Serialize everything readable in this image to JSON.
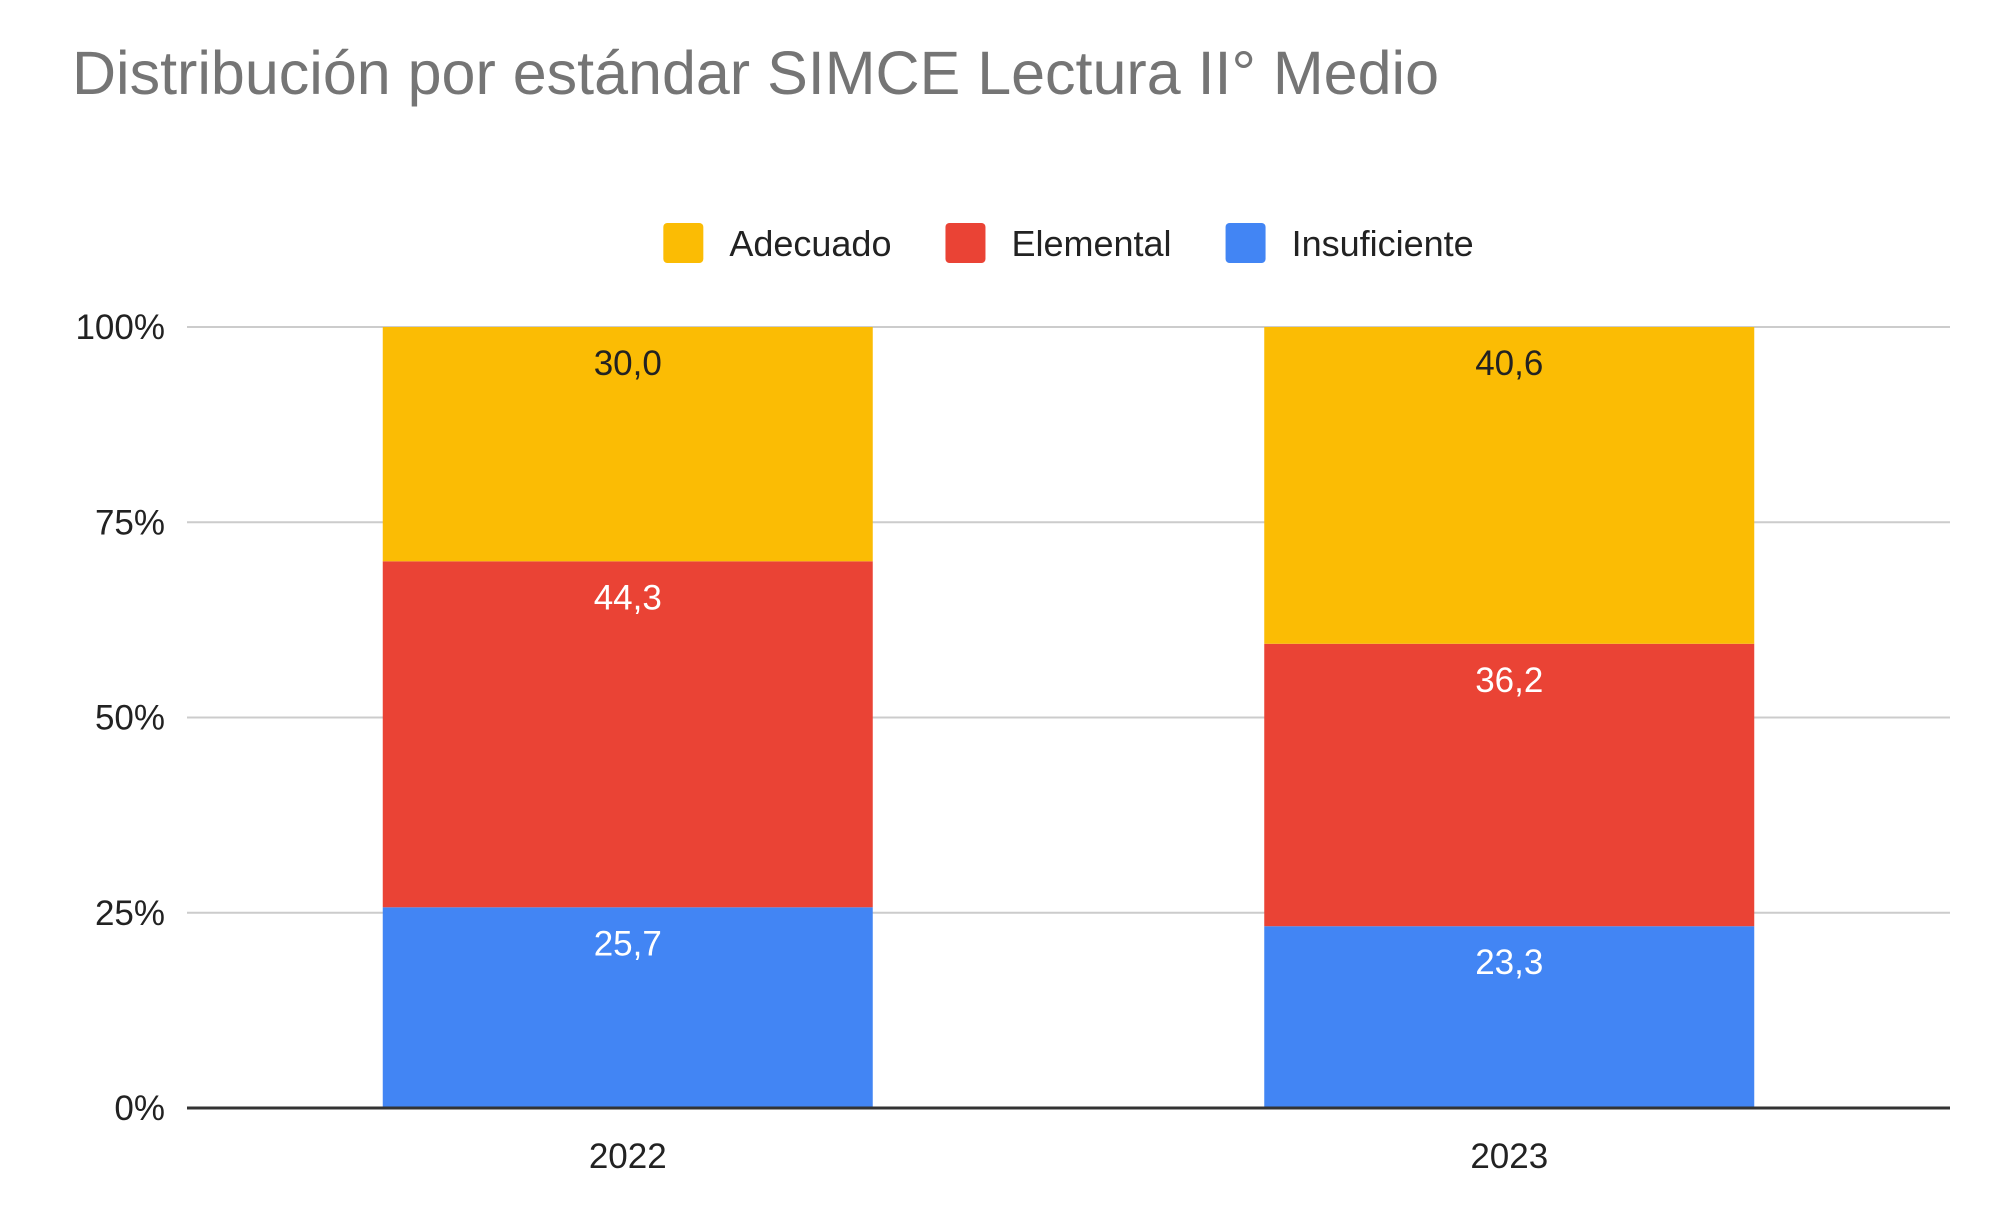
{
  "chart_data": {
    "type": "bar",
    "stacked": true,
    "percent_stacked": true,
    "title": "Distribución por estándar SIMCE Lectura II° Medio",
    "xlabel": "",
    "ylabel": "",
    "categories": [
      "2022",
      "2023"
    ],
    "series": [
      {
        "name": "Insuficiente",
        "color": "#4285f4",
        "label_color": "#ffffff",
        "values": [
          25.7,
          23.3
        ],
        "labels": [
          "25,7",
          "23,3"
        ]
      },
      {
        "name": "Elemental",
        "color": "#ea4335",
        "label_color": "#ffffff",
        "values": [
          44.3,
          36.2
        ],
        "labels": [
          "44,3",
          "36,2"
        ]
      },
      {
        "name": "Adecuado",
        "color": "#fbbc04",
        "label_color": "#222222",
        "values": [
          30.0,
          40.6
        ],
        "labels": [
          "30,0",
          "40,6"
        ]
      }
    ],
    "legend_order": [
      "Adecuado",
      "Elemental",
      "Insuficiente"
    ],
    "legend_position": "top",
    "ylim": [
      0,
      100
    ],
    "yticks": [
      0,
      25,
      50,
      75,
      100
    ],
    "ytick_labels": [
      "0%",
      "25%",
      "50%",
      "75%",
      "100%"
    ],
    "grid": true
  }
}
